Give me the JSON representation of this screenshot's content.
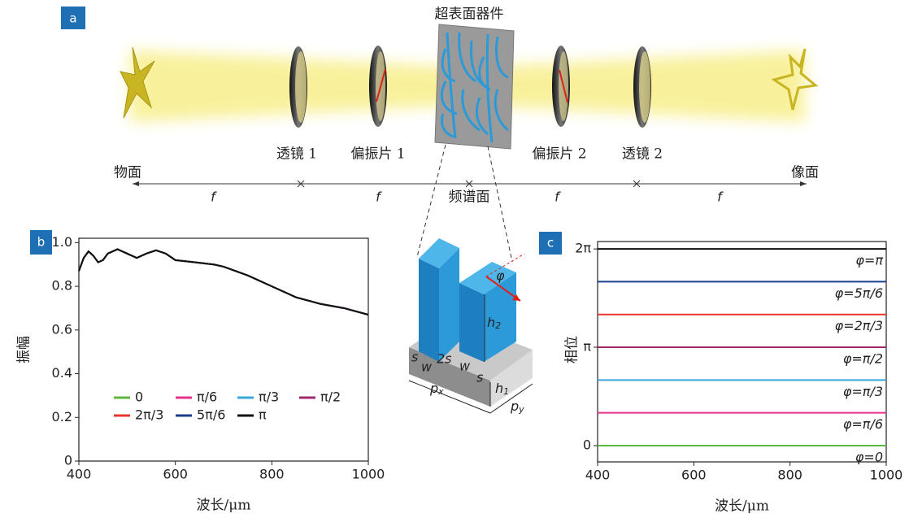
{
  "diagram": {
    "panel_label": "a",
    "device": "超表面器件",
    "lens_1": "透镜 1",
    "polarizer_1": "偏振片 1",
    "polarizer_2": "偏振片 2",
    "lens_2": "透镜 2",
    "object_plane": "物面",
    "image_plane": "像面",
    "spectrum_plane": "频谱面",
    "focal_lengths": [
      "f",
      "f",
      "f",
      "f"
    ]
  },
  "inset": {
    "angle": "φ",
    "h2": {
      "base": "h",
      "sub": "2"
    },
    "h1": {
      "base": "h",
      "sub": "1"
    },
    "px": {
      "base": "p",
      "sub": "x"
    },
    "py": {
      "base": "p",
      "sub": "y"
    },
    "s_left": "s",
    "w_left": "w",
    "gap": "2s",
    "w_right": "w",
    "s_right": "s"
  },
  "chart_data": [
    {
      "type": "line",
      "panel_label": "b",
      "y_label": "振幅",
      "x_label": "波长/μm",
      "xlim": [
        400,
        1000
      ],
      "xticks": [
        400,
        600,
        800,
        1000
      ],
      "ylim": [
        0,
        1.02
      ],
      "yticks": [
        0,
        0.2,
        0.4,
        0.6,
        0.8,
        {
          "value": 1,
          "label": "1.0"
        }
      ],
      "x": [
        400,
        410,
        420,
        430,
        440,
        450,
        460,
        480,
        500,
        520,
        540,
        560,
        580,
        600,
        640,
        680,
        700,
        750,
        800,
        850,
        900,
        950,
        1000
      ],
      "series": [
        {
          "name": "0",
          "color": "#5db83a",
          "values": [
            0.87,
            0.93,
            0.96,
            0.94,
            0.91,
            0.92,
            0.95,
            0.97,
            0.95,
            0.93,
            0.95,
            0.965,
            0.95,
            0.92,
            0.91,
            0.9,
            0.89,
            0.85,
            0.8,
            0.75,
            0.72,
            0.7,
            0.67
          ]
        },
        {
          "name": "π/6",
          "color": "#e6308a",
          "values": [
            0.87,
            0.93,
            0.96,
            0.94,
            0.91,
            0.92,
            0.95,
            0.97,
            0.95,
            0.93,
            0.95,
            0.965,
            0.95,
            0.92,
            0.91,
            0.9,
            0.89,
            0.85,
            0.8,
            0.75,
            0.72,
            0.7,
            0.67
          ]
        },
        {
          "name": "π/3",
          "color": "#3aa7dc",
          "values": [
            0.87,
            0.93,
            0.96,
            0.94,
            0.91,
            0.92,
            0.95,
            0.97,
            0.95,
            0.93,
            0.95,
            0.965,
            0.95,
            0.92,
            0.91,
            0.9,
            0.89,
            0.85,
            0.8,
            0.75,
            0.72,
            0.7,
            0.67
          ]
        },
        {
          "name": "π/2",
          "color": "#a0286e",
          "values": [
            0.87,
            0.93,
            0.96,
            0.94,
            0.91,
            0.92,
            0.95,
            0.97,
            0.95,
            0.93,
            0.95,
            0.965,
            0.95,
            0.92,
            0.91,
            0.9,
            0.89,
            0.85,
            0.8,
            0.75,
            0.72,
            0.7,
            0.67
          ]
        },
        {
          "name": "2π/3",
          "color": "#e8372a",
          "values": [
            0.87,
            0.93,
            0.96,
            0.94,
            0.91,
            0.92,
            0.95,
            0.97,
            0.95,
            0.93,
            0.95,
            0.965,
            0.95,
            0.92,
            0.91,
            0.9,
            0.89,
            0.85,
            0.8,
            0.75,
            0.72,
            0.7,
            0.67
          ]
        },
        {
          "name": "5π/6",
          "color": "#1f3a8c",
          "values": [
            0.87,
            0.93,
            0.96,
            0.94,
            0.91,
            0.92,
            0.95,
            0.97,
            0.95,
            0.93,
            0.95,
            0.965,
            0.95,
            0.92,
            0.91,
            0.9,
            0.89,
            0.85,
            0.8,
            0.75,
            0.72,
            0.7,
            0.67
          ]
        },
        {
          "name": "π",
          "color": "#111111",
          "values": [
            0.87,
            0.93,
            0.96,
            0.94,
            0.91,
            0.92,
            0.95,
            0.97,
            0.95,
            0.93,
            0.95,
            0.965,
            0.95,
            0.92,
            0.91,
            0.9,
            0.89,
            0.85,
            0.8,
            0.75,
            0.72,
            0.7,
            0.67
          ]
        }
      ]
    },
    {
      "type": "line",
      "panel_label": "c",
      "y_label": "相位",
      "x_label": "波长/μm",
      "xlim": [
        400,
        1000
      ],
      "xticks": [
        400,
        600,
        800,
        1000
      ],
      "ylim": [
        -0.52,
        6.52
      ],
      "yticks": [
        0,
        {
          "value": 3.1416,
          "label": "π"
        },
        {
          "value": 6.2832,
          "label": "2π"
        }
      ],
      "x": [
        400,
        1000
      ],
      "series": [
        {
          "label": "φ=0",
          "color": "#5db83a",
          "values": [
            0,
            0
          ]
        },
        {
          "label": "φ=π/6",
          "color": "#e6308a",
          "values": [
            1.0472,
            1.0472
          ]
        },
        {
          "label": "φ=π/3",
          "color": "#3aa7dc",
          "values": [
            2.0944,
            2.0944
          ]
        },
        {
          "label": "φ=π/2",
          "color": "#a0286e",
          "values": [
            3.1416,
            3.1416
          ]
        },
        {
          "label": "φ=2π/3",
          "color": "#e8372a",
          "values": [
            4.1888,
            4.1888
          ]
        },
        {
          "label": "φ=5π/6",
          "color": "#1f3a8c",
          "values": [
            5.236,
            5.236
          ]
        },
        {
          "label": "φ=π",
          "color": "#111111",
          "values": [
            6.2832,
            6.2832
          ]
        }
      ]
    }
  ]
}
